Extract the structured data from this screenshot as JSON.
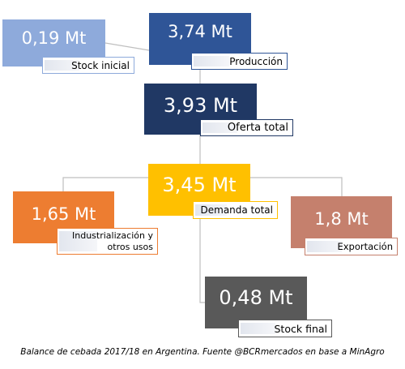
{
  "nodes": {
    "stock_inicial": {
      "value": "0,19 Mt",
      "label": "Stock inicial",
      "color": "#8eaadb",
      "border": "#8eaadb"
    },
    "produccion": {
      "value": "3,74 Mt",
      "label": "Producción",
      "color": "#2f5597",
      "border": "#2f5597"
    },
    "oferta_total": {
      "value": "3,93 Mt",
      "label": "Oferta total",
      "color": "#203864",
      "border": "#203864"
    },
    "demanda_total": {
      "value": "3,45 Mt",
      "label": "Demanda total",
      "color": "#ffc000",
      "border": "#ffc000"
    },
    "industrializacion": {
      "value": "1,65 Mt",
      "label": "Industrialización y otros usos",
      "color": "#ed7d31",
      "border": "#ed7d31"
    },
    "exportacion": {
      "value": "1,8 Mt",
      "label": "Exportación",
      "color": "#c5806d",
      "border": "#c5806d"
    },
    "stock_final": {
      "value": "0,48 Mt",
      "label": "Stock final",
      "color": "#595959",
      "border": "#595959"
    }
  },
  "caption": "Balance de cebada 2017/18 en Argentina. Fuente @BCRmercados en base a MinAgro",
  "connector_color": "#bfbfbf"
}
